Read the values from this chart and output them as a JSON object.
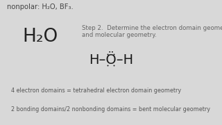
{
  "bg_color": "#d8d8d8",
  "content_bg": "#e8e8e8",
  "top_text": "nonpolar: H₂O, BF₃.",
  "h2o_label": "H₂O",
  "step2_text": "Step 2.  Determine the electron domain geometry\nand molecular geometry.",
  "lewis_text": "H–Ö–H",
  "line1": "4 electron domains = tetrahedral electron domain geometry",
  "line2": "2 bonding domains/2 nonbonding domains = bent molecular geometry",
  "top_text_color": "#444444",
  "h2o_color": "#222222",
  "step2_color": "#666666",
  "lewis_color": "#1a1a1a",
  "bottom_text_color": "#555555"
}
